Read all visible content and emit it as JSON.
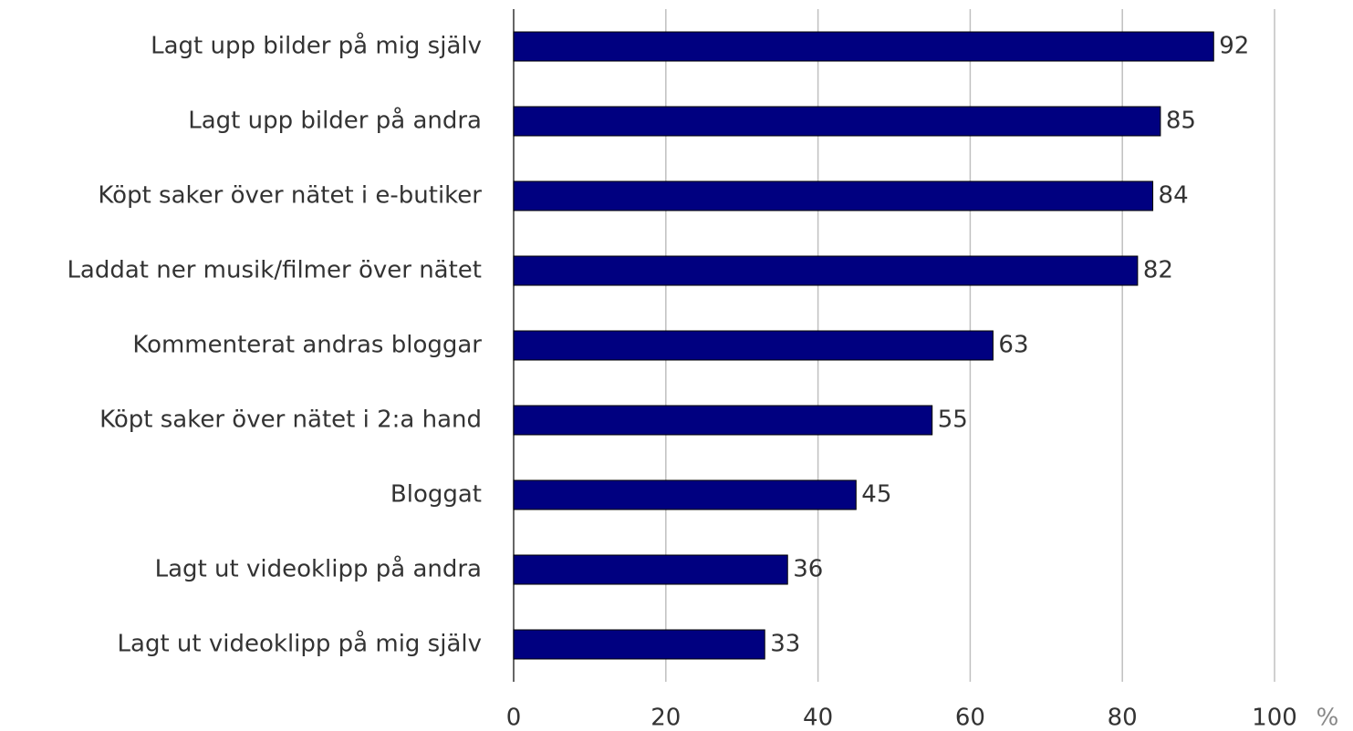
{
  "chart_data": {
    "type": "bar",
    "orientation": "horizontal",
    "categories": [
      "Lagt upp bilder på mig själv",
      "Lagt upp bilder på andra",
      "Köpt saker över nätet i e-butiker",
      "Laddat ner musik/filmer över nätet",
      "Kommenterat andras bloggar",
      "Köpt saker över nätet i 2:a hand",
      "Bloggat",
      "Lagt ut videoklipp på andra",
      "Lagt ut videoklipp på mig själv"
    ],
    "values": [
      92,
      85,
      84,
      82,
      63,
      55,
      45,
      36,
      33
    ],
    "color": "#000080",
    "xlabel": "%",
    "xlim": [
      0,
      100
    ],
    "xticks": [
      0,
      20,
      40,
      60,
      80,
      100
    ],
    "grid": true
  }
}
